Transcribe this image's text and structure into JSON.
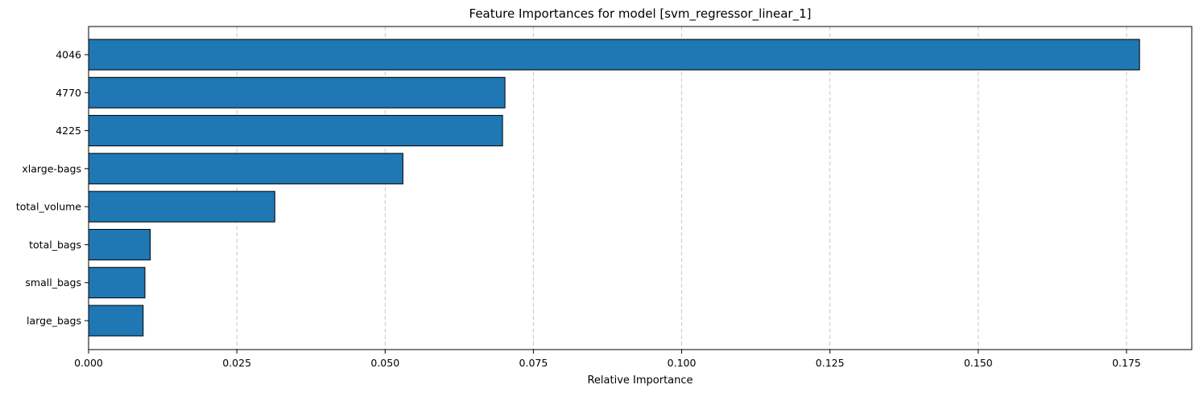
{
  "chart_data": {
    "type": "bar",
    "orientation": "horizontal",
    "title": "Feature Importances for model [svm_regressor_linear_1]",
    "xlabel": "Relative Importance",
    "ylabel": "",
    "categories": [
      "4046",
      "4770",
      "4225",
      "xlarge-bags",
      "total_volume",
      "total_bags",
      "small_bags",
      "large_bags"
    ],
    "values": [
      0.1772,
      0.0702,
      0.0698,
      0.053,
      0.0314,
      0.0104,
      0.0095,
      0.0092
    ],
    "xlim": [
      0,
      0.186
    ],
    "xticks": [
      0.0,
      0.025,
      0.05,
      0.075,
      0.1,
      0.125,
      0.15,
      0.175
    ],
    "xtick_labels": [
      "0.000",
      "0.025",
      "0.050",
      "0.075",
      "0.100",
      "0.125",
      "0.150",
      "0.175"
    ],
    "grid": "x-axis dashed",
    "legend": "none",
    "colors": {
      "bar_fill": "#1f77b4",
      "bar_edge": "#000000",
      "grid": "#c8c8c8"
    }
  }
}
